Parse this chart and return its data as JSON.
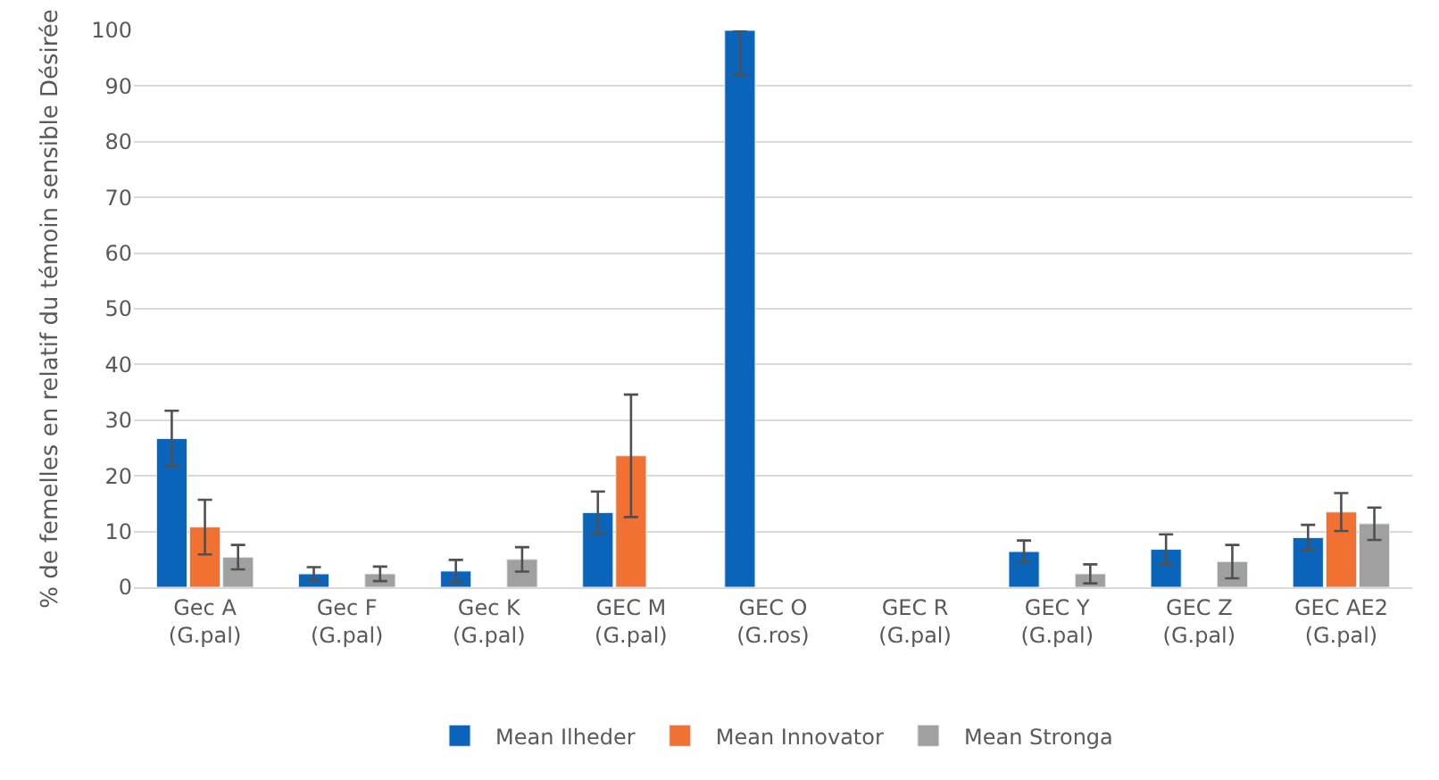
{
  "chart_data": {
    "type": "bar",
    "ylabel": "% de femelles en relatif du témoin sensible Désirée",
    "categories": [
      "Gec A\n(G.pal)",
      "Gec F\n(G.pal)",
      "Gec K\n(G.pal)",
      "GEC M\n(G.pal)",
      "GEC O\n(G.ros)",
      "GEC R\n(G.pal)",
      "GEC Y\n(G.pal)",
      "GEC Z\n(G.pal)",
      "GEC AE2\n(G.pal)"
    ],
    "series": [
      {
        "name": "Mean Ilheder",
        "color": "#0a64b9",
        "values": [
          26.7,
          2.4,
          2.9,
          13.4,
          100,
          null,
          6.4,
          6.8,
          8.9
        ],
        "errors": [
          5,
          1.2,
          2,
          3.8,
          [
            92,
            100
          ],
          null,
          2,
          2.7,
          2.3
        ]
      },
      {
        "name": "Mean Innovator",
        "color": "#f07132",
        "values": [
          10.8,
          null,
          null,
          23.6,
          null,
          null,
          null,
          null,
          13.5
        ],
        "errors": [
          4.9,
          null,
          null,
          11,
          null,
          null,
          null,
          null,
          3.4
        ]
      },
      {
        "name": "Mean Stronga",
        "color": "#a0a0a0",
        "values": [
          5.4,
          2.4,
          5,
          null,
          null,
          null,
          2.4,
          4.6,
          11.4
        ],
        "errors": [
          2.2,
          1.3,
          2.2,
          null,
          null,
          null,
          1.7,
          3,
          2.9
        ]
      }
    ],
    "ylim": [
      0,
      100
    ],
    "yticks": [
      0,
      10,
      20,
      30,
      40,
      50,
      60,
      70,
      80,
      90,
      100
    ],
    "grid": "y",
    "legend": "bottom"
  }
}
